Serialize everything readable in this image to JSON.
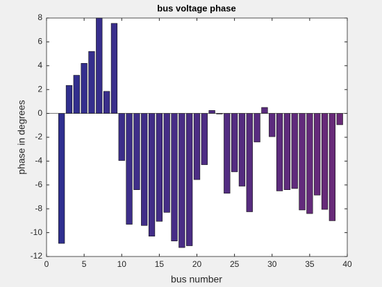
{
  "chart_data": {
    "type": "bar",
    "title": "bus voltage phase",
    "x_label": "bus number",
    "y_label": "phase in degrees",
    "x": [
      2,
      3,
      4,
      5,
      6,
      7,
      8,
      9,
      10,
      11,
      12,
      13,
      14,
      15,
      16,
      17,
      18,
      19,
      20,
      21,
      22,
      23,
      24,
      25,
      26,
      27,
      28,
      29,
      30,
      31,
      32,
      33,
      34,
      35,
      36,
      37,
      38,
      39
    ],
    "values": [
      -10.9,
      2.35,
      3.2,
      4.2,
      5.2,
      8.0,
      1.85,
      7.55,
      -3.95,
      -9.3,
      -6.4,
      -9.4,
      -10.3,
      -9.05,
      -8.3,
      -10.7,
      -11.25,
      -11.1,
      -5.55,
      -4.3,
      0.25,
      -0.05,
      -6.7,
      -4.9,
      -6.1,
      -8.25,
      -2.4,
      0.5,
      -1.95,
      -6.5,
      -6.4,
      -6.3,
      -8.1,
      -8.4,
      -6.85,
      -8.05,
      -9.0,
      -0.95
    ],
    "color": "#2f2f8f",
    "color_end": "#6a2a78",
    "xlim": [
      0,
      40
    ],
    "xticks": [
      0,
      5,
      10,
      15,
      20,
      25,
      30,
      35,
      40
    ],
    "ylim": [
      -12,
      8
    ],
    "yticks": [
      -12,
      -10,
      -8,
      -6,
      -4,
      -2,
      0,
      2,
      4,
      6,
      8
    ]
  }
}
